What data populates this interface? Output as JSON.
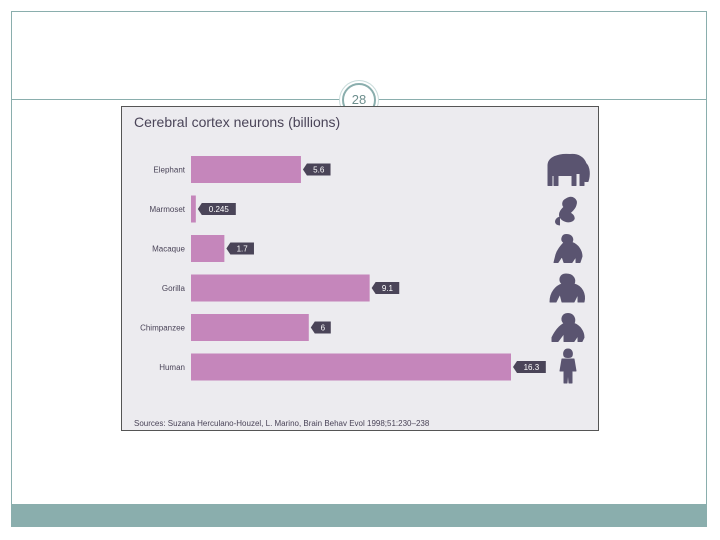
{
  "slide": {
    "page_number": "28"
  },
  "chart_data": {
    "type": "bar",
    "orientation": "horizontal",
    "title": "Cerebral cortex neurons (billions)",
    "categories": [
      "Elephant",
      "Marmoset",
      "Macaque",
      "Gorilla",
      "Chimpanzee",
      "Human"
    ],
    "values": [
      5.6,
      0.245,
      1.7,
      9.1,
      6,
      16.3
    ],
    "value_labels": [
      "5.6",
      "0.245",
      "1.7",
      "9.1",
      "6",
      "16.3"
    ],
    "icons": [
      "elephant-icon",
      "marmoset-icon",
      "macaque-icon",
      "gorilla-icon",
      "chimpanzee-icon",
      "human-icon"
    ],
    "xlim": [
      0,
      16.3
    ],
    "grid": false,
    "legend": "none",
    "bar_color": "#c586bb",
    "label_bg_color": "#4a4458",
    "icon_color": "#5a5470",
    "source": "Sources: Suzana Herculano-Houzel, L. Marino, Brain Behav Evol 1998;51:230–238"
  }
}
